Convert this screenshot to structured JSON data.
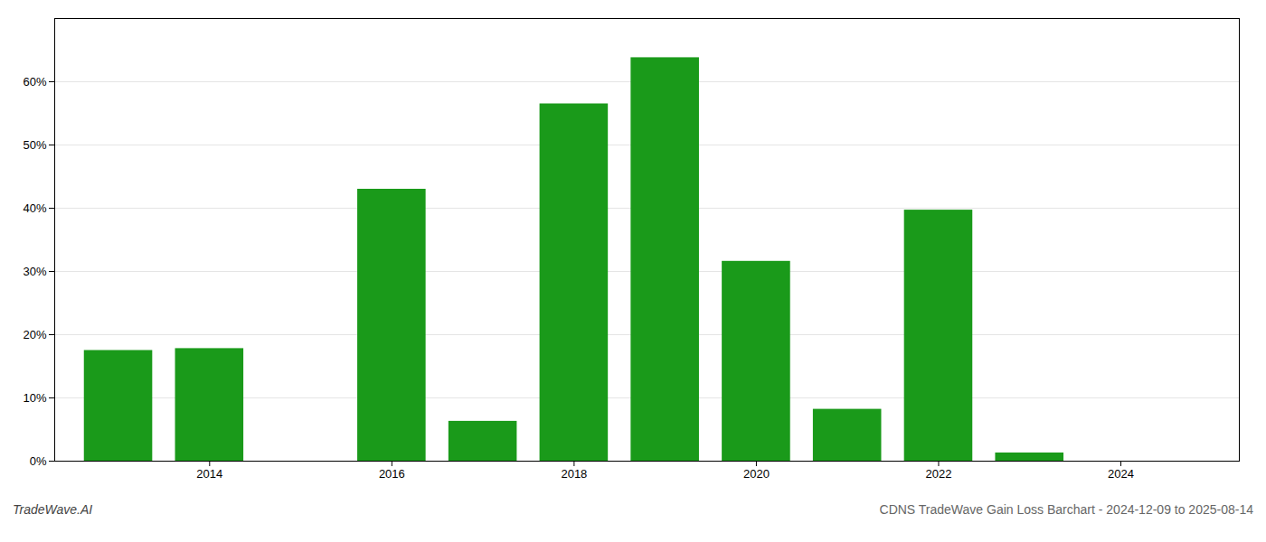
{
  "chart_data": {
    "type": "bar",
    "x": [
      2013,
      2014,
      2016,
      2017,
      2018,
      2019,
      2020,
      2021,
      2022,
      2023,
      2024
    ],
    "values": [
      0.175,
      0.178,
      0.43,
      0.063,
      0.565,
      0.638,
      0.316,
      0.082,
      0.397,
      0.013,
      0.0
    ],
    "color": "#1a9a1a",
    "xlim": [
      2012.3,
      2025.3
    ],
    "xticks": [
      2014,
      2016,
      2018,
      2020,
      2022,
      2024
    ],
    "ylim": [
      0,
      0.7
    ],
    "yticks": [
      {
        "value": 0.0,
        "label": "0%"
      },
      {
        "value": 0.1,
        "label": "10%"
      },
      {
        "value": 0.2,
        "label": "20%"
      },
      {
        "value": 0.3,
        "label": "30%"
      },
      {
        "value": 0.4,
        "label": "40%"
      },
      {
        "value": 0.5,
        "label": "50%"
      },
      {
        "value": 0.6,
        "label": "60%"
      }
    ],
    "grid": true,
    "annotations": [
      "TradeWave.AI",
      "CDNS TradeWave Gain Loss Barchart - 2024-12-09 to 2025-08-14"
    ]
  }
}
